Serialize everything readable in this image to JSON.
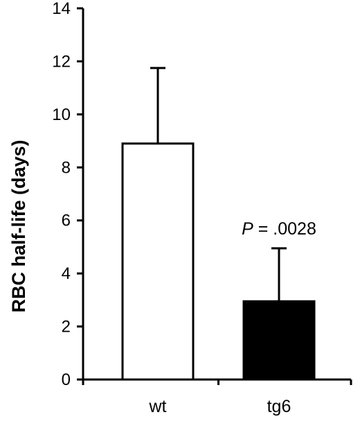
{
  "chart_data": {
    "type": "bar",
    "ylabel": "RBC half-life (days)",
    "xlabel": "",
    "ylim": [
      0,
      14
    ],
    "yticks": [
      0,
      2,
      4,
      6,
      8,
      10,
      12,
      14
    ],
    "grid": false,
    "legend": "none",
    "categories": [
      "wt",
      "tg6"
    ],
    "values": [
      8.9,
      2.95
    ],
    "error_upper": [
      2.85,
      2.0
    ],
    "bar_colors": [
      "#ffffff",
      "#000000"
    ],
    "annotation": {
      "prefix": "P",
      "text": " = .0028",
      "category": "tg6"
    }
  }
}
